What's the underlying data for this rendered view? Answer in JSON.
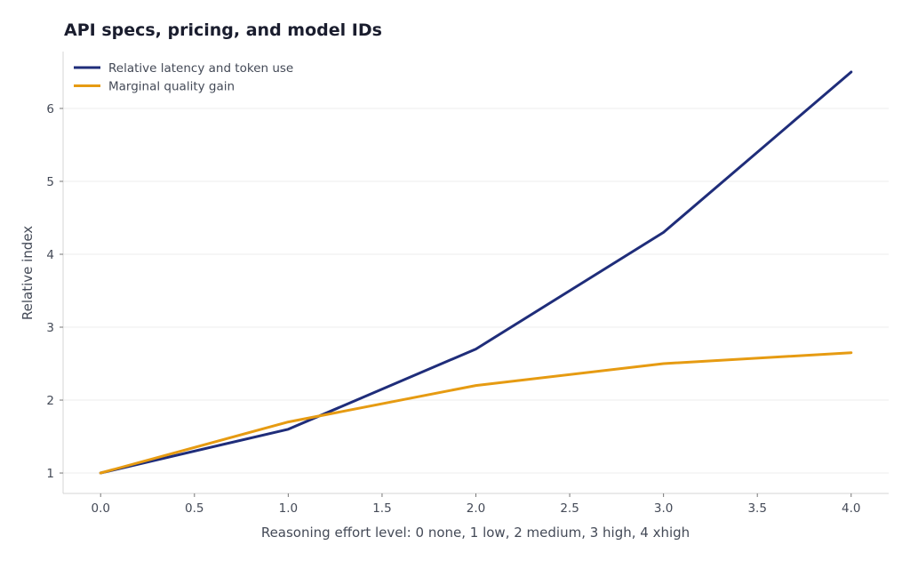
{
  "chart_data": {
    "type": "line",
    "title": "API specs, pricing, and model IDs",
    "xlabel": "Reasoning effort level: 0 none, 1 low, 2 medium, 3 high, 4 xhigh",
    "ylabel": "Relative index",
    "xlim": [
      -0.2,
      4.2
    ],
    "ylim": [
      0.72,
      6.78
    ],
    "x_ticks": [
      0.0,
      0.5,
      1.0,
      1.5,
      2.0,
      2.5,
      3.0,
      3.5,
      4.0
    ],
    "x_tick_labels": [
      "0.0",
      "0.5",
      "1.0",
      "1.5",
      "2.0",
      "2.5",
      "3.0",
      "3.5",
      "4.0"
    ],
    "y_ticks": [
      1,
      2,
      3,
      4,
      5,
      6
    ],
    "y_tick_labels": [
      "1",
      "2",
      "3",
      "4",
      "5",
      "6"
    ],
    "grid": "horizontal",
    "legend_position": "top-left",
    "x": [
      0,
      1,
      2,
      3,
      4
    ],
    "series": [
      {
        "name": "Relative latency and token use",
        "values": [
          1.0,
          1.6,
          2.7,
          4.3,
          6.5
        ],
        "color": "#1f2d7a"
      },
      {
        "name": "Marginal quality gain",
        "values": [
          1.0,
          1.7,
          2.2,
          2.5,
          2.65
        ],
        "color": "#e69b12"
      }
    ]
  }
}
